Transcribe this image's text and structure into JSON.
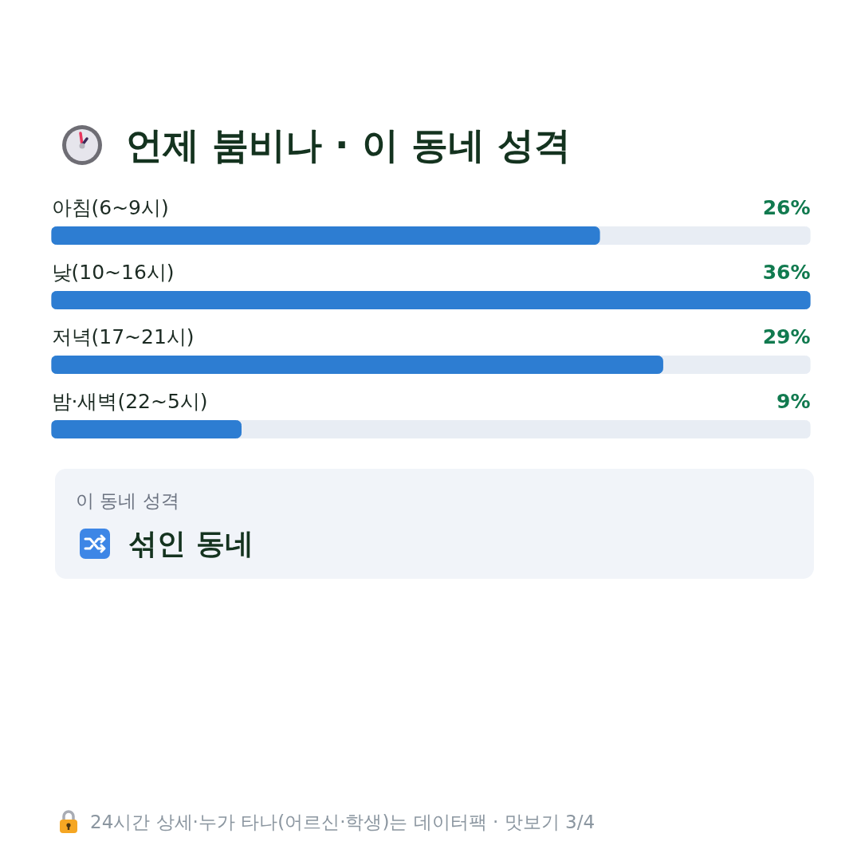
{
  "chart_data": {
    "type": "bar",
    "orientation": "horizontal",
    "title": "언제 붐비나 · 이 동네 성격",
    "categories": [
      "아침(6~9시)",
      "낮(10~16시)",
      "저녁(17~21시)",
      "밤·새벽(22~5시)"
    ],
    "values": [
      26,
      36,
      29,
      9
    ],
    "value_labels": [
      "26%",
      "36%",
      "29%",
      "9%"
    ],
    "color": "#2d7dd2",
    "annotations": [
      "이 동네 성격",
      "섞인 동네",
      "24시간 상세·누가 타나(어르신·학생)는 데이터팩 · 맛보기 3/4"
    ]
  }
}
